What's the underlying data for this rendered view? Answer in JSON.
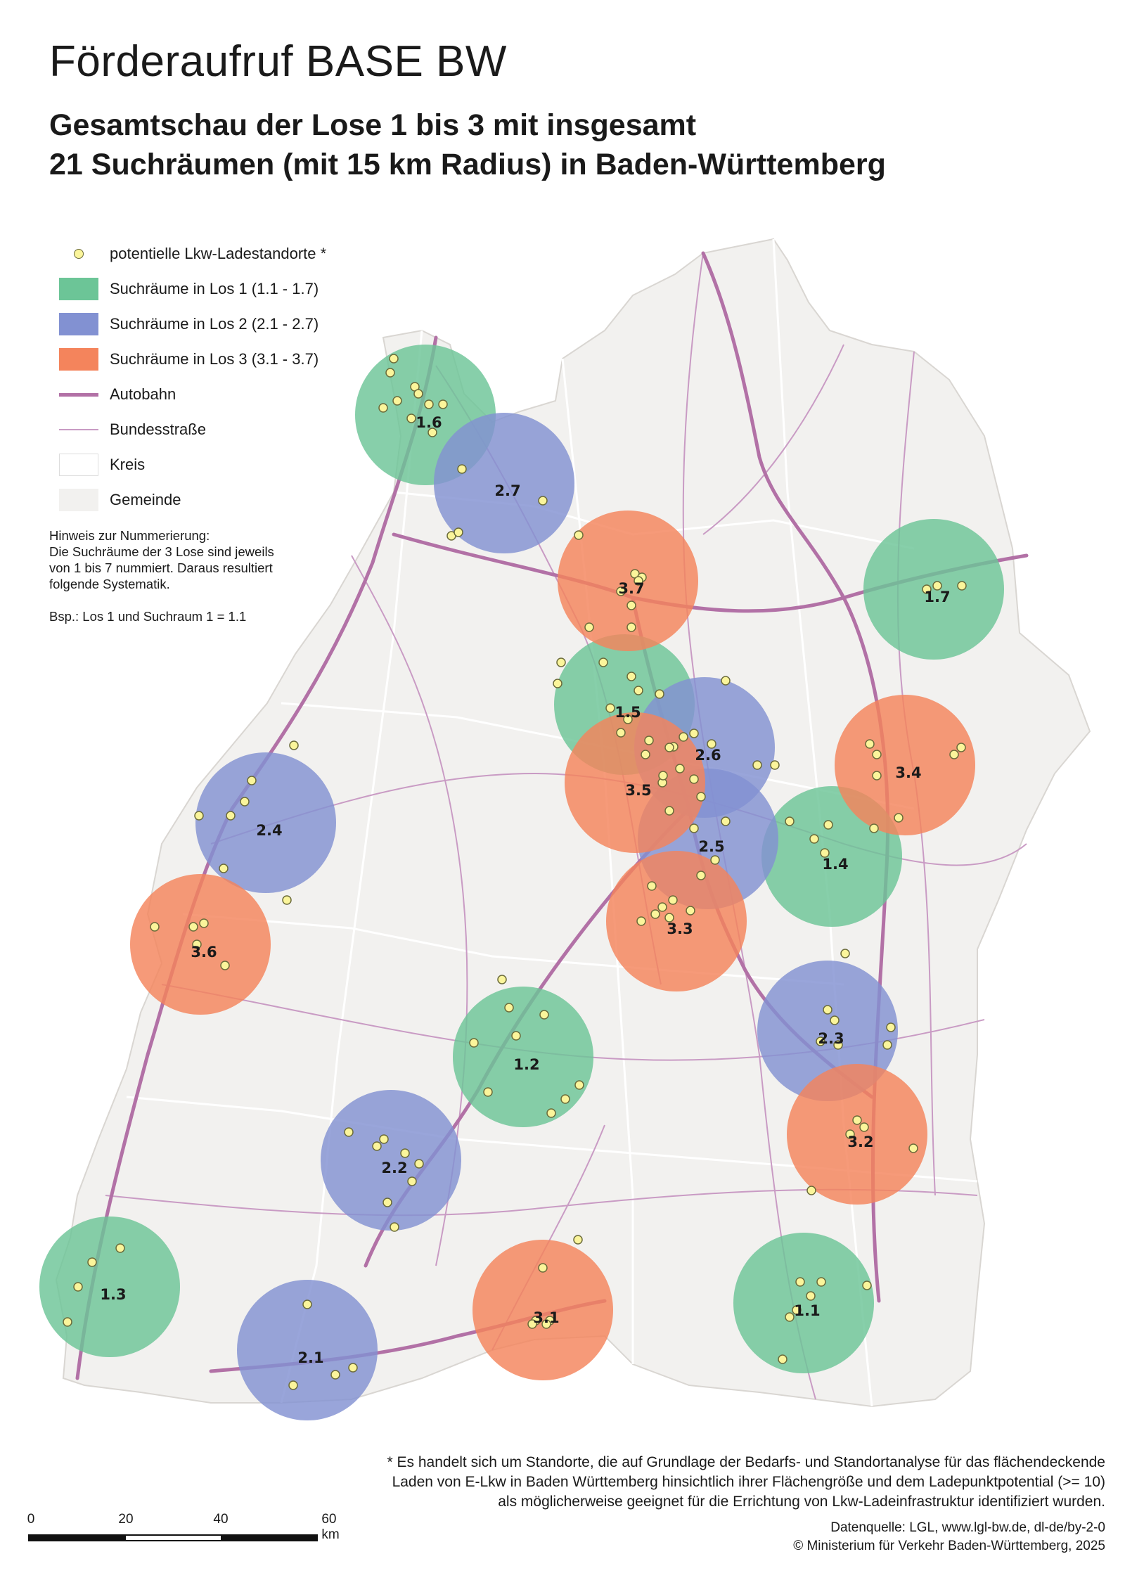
{
  "title": "Förderaufruf BASE BW",
  "subtitle_line1": "Gesamtschau der Lose 1 bis 3 mit insgesamt",
  "subtitle_line2": "21 Suchräumen (mit 15 km Radius) in Baden-Württemberg",
  "legend": {
    "stations": "potentielle Lkw-Ladestandorte *",
    "los1": "Suchräume in Los 1 (1.1 - 1.7)",
    "los2": "Suchräume in Los 2 (2.1 - 2.7)",
    "los3": "Suchräume in Los 3 (3.1 - 3.7)",
    "autobahn": "Autobahn",
    "bundesstrasse": "Bundesstraße",
    "kreis": "Kreis",
    "gemeinde": "Gemeinde"
  },
  "colors": {
    "los1": "#6cc597",
    "los2": "#8291d2",
    "los3": "#f4845c",
    "autobahn": "#b271a6",
    "bundesstrasse": "#c99bc4",
    "land": "#f2f1ef",
    "station": "#fbf59b"
  },
  "note": {
    "heading": "Hinweis zur Nummerierung:",
    "line1": "Die Suchräume der 3 Lose sind jeweils",
    "line2": "von 1 bis 7 nummiert. Daraus resultiert",
    "line3": "folgende Systematik.",
    "example": "Bsp.: Los 1 und Suchraum 1 = 1.1"
  },
  "zones": [
    {
      "label": "1.1",
      "los": 1
    },
    {
      "label": "1.2",
      "los": 1
    },
    {
      "label": "1.3",
      "los": 1
    },
    {
      "label": "1.4",
      "los": 1
    },
    {
      "label": "1.5",
      "los": 1
    },
    {
      "label": "1.6",
      "los": 1
    },
    {
      "label": "1.7",
      "los": 1
    },
    {
      "label": "2.1",
      "los": 2
    },
    {
      "label": "2.2",
      "los": 2
    },
    {
      "label": "2.3",
      "los": 2
    },
    {
      "label": "2.4",
      "los": 2
    },
    {
      "label": "2.5",
      "los": 2
    },
    {
      "label": "2.6",
      "los": 2
    },
    {
      "label": "2.7",
      "los": 2
    },
    {
      "label": "3.1",
      "los": 3
    },
    {
      "label": "3.2",
      "los": 3
    },
    {
      "label": "3.3",
      "los": 3
    },
    {
      "label": "3.4",
      "los": 3
    },
    {
      "label": "3.5",
      "los": 3
    },
    {
      "label": "3.6",
      "los": 3
    },
    {
      "label": "3.7",
      "los": 3
    }
  ],
  "footnote": {
    "line1": "* Es handelt sich um Standorte, die auf Grundlage der Bedarfs- und Standortanalyse für das flächendeckende",
    "line2": "Laden von E-Lkw in Baden Württemberg hinsichtlich ihrer Flächengröße und dem Ladepunktpotential (>= 10)",
    "line3": "als möglicherweise geeignet für die Errichtung von Lkw-Ladeinfrastruktur identifiziert wurden."
  },
  "source": {
    "line1": "Datenquelle: LGL, www.lgl-bw.de, dl-de/by-2-0",
    "line2": "© Ministerium für Verkehr Baden-Württemberg, 2025"
  },
  "scalebar": {
    "ticks": [
      "0",
      "20",
      "40",
      "60 km"
    ]
  }
}
